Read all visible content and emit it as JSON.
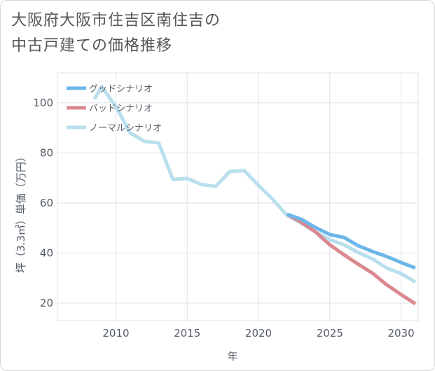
{
  "title_lines": [
    "大阪府大阪市住吉区南住吉の",
    "中古戸建ての価格推移"
  ],
  "chart_data": {
    "type": "line",
    "title": "大阪府大阪市住吉区南住吉の中古戸建ての価格推移",
    "xlabel": "年",
    "ylabel": "坪（3.3㎡）単価（万円）",
    "xlim": [
      2005.9,
      2031.2
    ],
    "ylim": [
      13,
      112
    ],
    "xticks": [
      2010,
      2015,
      2020,
      2025,
      2030
    ],
    "yticks": [
      20,
      40,
      60,
      80,
      100
    ],
    "grid": true,
    "legend_position": "top-left",
    "series": [
      {
        "name": "グッドシナリオ",
        "color": "#6cb6ea",
        "x": [
          2022,
          2023,
          2024,
          2025,
          2026,
          2027,
          2028,
          2029,
          2030,
          2031
        ],
        "y": [
          55.5,
          53.5,
          50.2,
          47.4,
          46.2,
          42.9,
          40.6,
          38.6,
          36.2,
          34.0
        ]
      },
      {
        "name": "バッドシナリオ",
        "color": "#db8890",
        "x": [
          2022,
          2023,
          2024,
          2025,
          2026,
          2027,
          2028,
          2029,
          2030,
          2031
        ],
        "y": [
          55.5,
          52.3,
          48.4,
          43.3,
          39.3,
          35.5,
          31.9,
          27.3,
          23.4,
          19.7
        ]
      },
      {
        "name": "ノーマルシナリオ",
        "color": "#b9dfec",
        "x": [
          2008.5,
          2009,
          2010,
          2011,
          2012,
          2013,
          2014,
          2015,
          2016,
          2017,
          2018,
          2019,
          2020,
          2021,
          2022,
          2023,
          2024,
          2025,
          2026,
          2027,
          2028,
          2029,
          2030,
          2031
        ],
        "y": [
          101.5,
          106.5,
          98.5,
          88.0,
          84.6,
          84.0,
          69.4,
          69.8,
          67.4,
          66.6,
          72.6,
          72.9,
          67.0,
          61.4,
          55.0,
          51.9,
          48.4,
          45.3,
          43.3,
          40.2,
          37.6,
          34.0,
          31.8,
          28.4
        ]
      }
    ]
  }
}
